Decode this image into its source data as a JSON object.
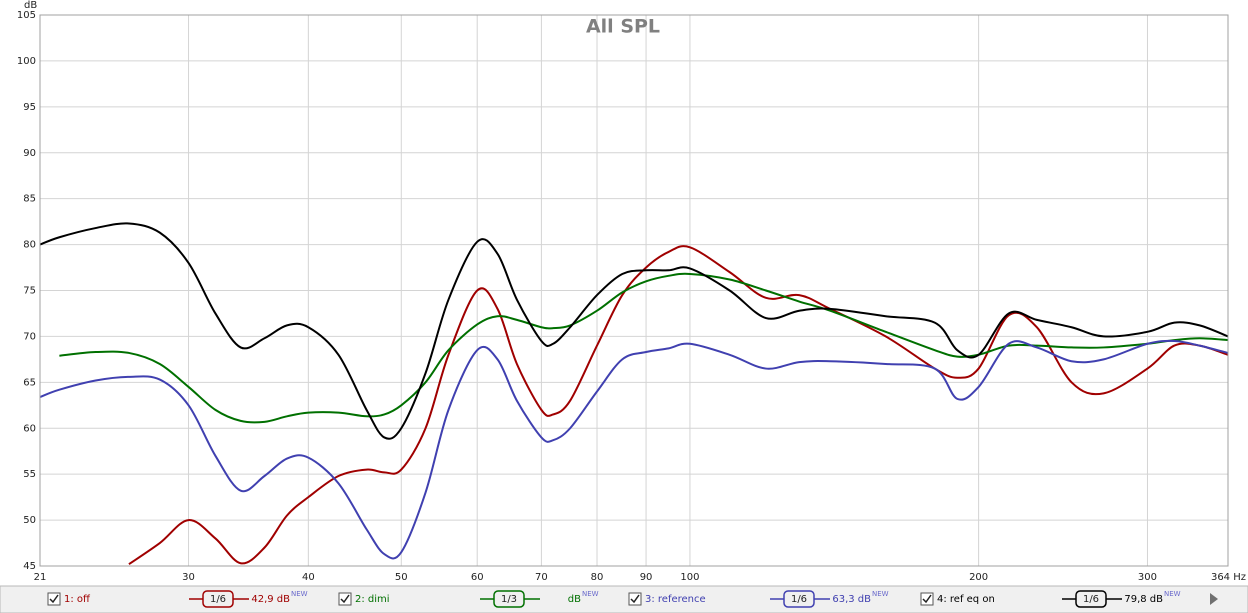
{
  "chart_data": {
    "type": "line",
    "title": "All SPL",
    "y_label": "dB",
    "x_log": true,
    "grid": true,
    "xlim": [
      21,
      364
    ],
    "xticks": [
      21,
      30,
      40,
      50,
      60,
      70,
      80,
      90,
      100,
      200,
      300,
      {
        "value": 364,
        "label": "364 Hz"
      }
    ],
    "ylim": [
      45,
      105
    ],
    "yticks": [
      45,
      50,
      55,
      60,
      65,
      70,
      75,
      80,
      85,
      90,
      95,
      100,
      105
    ],
    "x": [
      21,
      22,
      24,
      26,
      28,
      30,
      32,
      34,
      36,
      38,
      40,
      43,
      46,
      48,
      50,
      53,
      56,
      60,
      63,
      66,
      70,
      72,
      75,
      80,
      85,
      90,
      95,
      100,
      110,
      120,
      130,
      140,
      160,
      180,
      190,
      200,
      215,
      230,
      250,
      270,
      300,
      320,
      340,
      364
    ],
    "legend_badge": "NEW",
    "series": [
      {
        "name": "1: off",
        "smoothing": "1/6",
        "level": "42,9 dB",
        "color": "#a00000",
        "values": [
          null,
          null,
          null,
          45.2,
          47.5,
          50,
          48,
          45.3,
          47,
          50.5,
          52.5,
          54.8,
          55.5,
          55.2,
          55.5,
          60,
          68,
          75,
          73,
          67,
          62,
          61.5,
          63,
          69,
          74.5,
          77.5,
          79.2,
          79.7,
          77,
          74.2,
          74.5,
          73,
          70,
          66.5,
          65.5,
          66.5,
          72.3,
          71,
          65,
          63.8,
          66.5,
          69,
          69,
          68
        ]
      },
      {
        "name": "2: dimi",
        "smoothing": "1/3",
        "level": "dB",
        "color": "#007000",
        "values": [
          null,
          67.9,
          68.3,
          68.2,
          67,
          64.5,
          62,
          60.8,
          60.7,
          61.3,
          61.7,
          61.7,
          61.3,
          61.5,
          62.5,
          65,
          68.5,
          71.3,
          72.2,
          71.8,
          71,
          70.9,
          71.2,
          72.8,
          74.8,
          76,
          76.6,
          76.8,
          76.2,
          75,
          73.8,
          72.8,
          70.5,
          68.5,
          67.8,
          68,
          69,
          69,
          68.8,
          68.8,
          69.2,
          69.6,
          69.8,
          69.6
        ]
      },
      {
        "name": "3: reference",
        "smoothing": "1/6",
        "level": "63,3 dB",
        "color": "#4040b0",
        "values": [
          63.4,
          64.2,
          65.2,
          65.6,
          65.3,
          62.5,
          57,
          53.2,
          54.8,
          56.7,
          56.8,
          54,
          49,
          46.3,
          46.5,
          53,
          62,
          68.5,
          67.5,
          63,
          59,
          58.7,
          60,
          64,
          67.5,
          68.3,
          68.7,
          69.2,
          68,
          66.5,
          67.2,
          67.3,
          67,
          66.5,
          63.2,
          64.5,
          69.2,
          68.8,
          67.3,
          67.5,
          69.2,
          69.5,
          69,
          68.2
        ]
      },
      {
        "name": "4: ref eq on",
        "smoothing": "1/6",
        "level": "79,8 dB",
        "color": "#000000",
        "values": [
          80,
          80.8,
          81.8,
          82.3,
          81.3,
          78,
          72.5,
          68.8,
          69.8,
          71.2,
          71,
          68,
          62,
          59,
          60,
          66,
          74,
          80.3,
          79,
          74,
          69.5,
          69.2,
          71,
          74.5,
          76.8,
          77.2,
          77.2,
          77.4,
          75,
          72,
          72.8,
          73,
          72.2,
          71.5,
          68.5,
          68,
          72.5,
          71.8,
          71,
          70,
          70.5,
          71.5,
          71.2,
          70
        ]
      }
    ]
  }
}
